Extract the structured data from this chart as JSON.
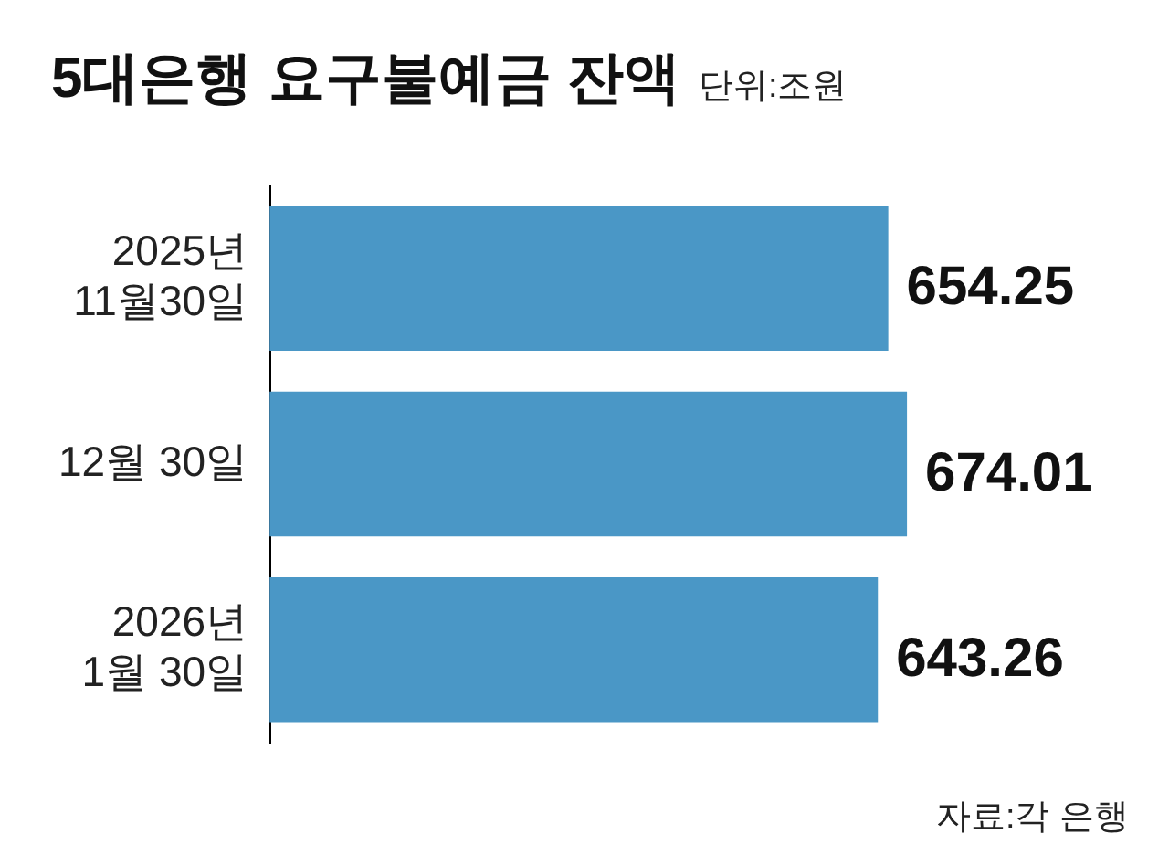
{
  "chart_data": {
    "type": "bar",
    "orientation": "horizontal",
    "title": "5대은행 요구불예금 잔액",
    "subtitle": "단위:조원",
    "categories": [
      "2025년\n11월30일",
      "12월 30일",
      "2026년\n1월 30일"
    ],
    "values": [
      654.25,
      674.01,
      643.26
    ],
    "color": "#4a97c6",
    "tick_labels": "y",
    "legend": false,
    "data_labels": true,
    "annotations": [
      "자료:각 은행"
    ]
  }
}
